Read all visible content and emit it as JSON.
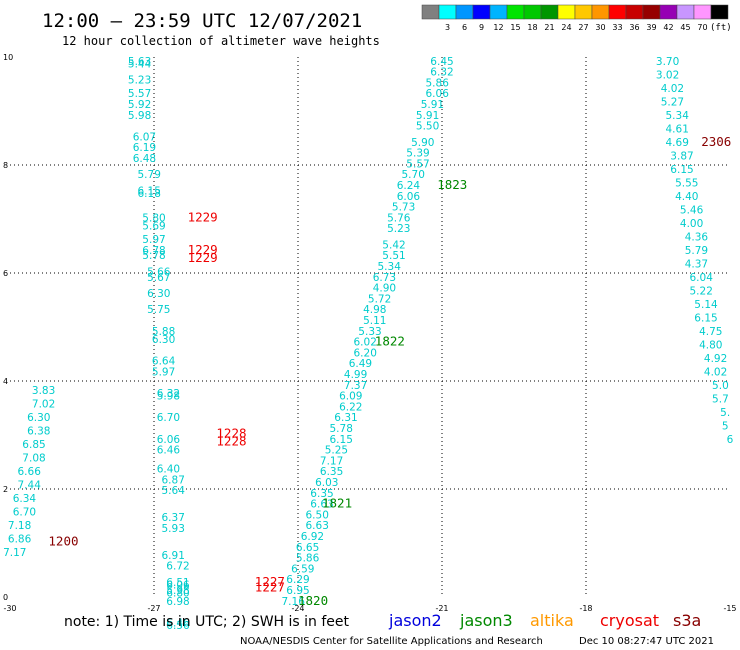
{
  "header": {
    "title": "12:00 – 23:59 UTC 12/07/2021",
    "subtitle": "12 hour collection of altimeter wave heights"
  },
  "legend": {
    "unit": "(ft)",
    "swatches": [
      {
        "color": "#808080",
        "label": ""
      },
      {
        "color": "#00ffff",
        "label": "3"
      },
      {
        "color": "#0096ff",
        "label": "6"
      },
      {
        "color": "#0000ff",
        "label": "9"
      },
      {
        "color": "#00b4ff",
        "label": "12"
      },
      {
        "color": "#00e400",
        "label": "15"
      },
      {
        "color": "#00c800",
        "label": "18"
      },
      {
        "color": "#009600",
        "label": "21"
      },
      {
        "color": "#ffff00",
        "label": "24"
      },
      {
        "color": "#ffc800",
        "label": "27"
      },
      {
        "color": "#ff9600",
        "label": "30"
      },
      {
        "color": "#ff0000",
        "label": "33"
      },
      {
        "color": "#c80000",
        "label": "36"
      },
      {
        "color": "#960000",
        "label": "39"
      },
      {
        "color": "#9600b4",
        "label": "42"
      },
      {
        "color": "#c896ff",
        "label": "45"
      },
      {
        "color": "#ff96ff",
        "label": "70"
      },
      {
        "color": "#000000",
        "label": ""
      }
    ]
  },
  "footer": {
    "note": "note: 1) Time is in UTC; 2) SWH is in feet",
    "credit": "NOAA/NESDIS Center for Satellite Applications and Research",
    "timestamp": "Dec 10 08:27:47 UTC 2021",
    "satellites": [
      {
        "name": "jason2",
        "color": "#0000dd"
      },
      {
        "name": "jason3",
        "color": "#008800"
      },
      {
        "name": "altika",
        "color": "#ff9900"
      },
      {
        "name": "cryosat",
        "color": "#ee0000"
      },
      {
        "name": "s3a",
        "color": "#880000"
      }
    ]
  },
  "chart_data": {
    "type": "scatter",
    "xlim": [
      -30,
      -15
    ],
    "ylim": [
      0,
      10
    ],
    "xticks": [
      -30,
      -27,
      -24,
      -21,
      -18,
      -15
    ],
    "xtick_labels": [
      "-30",
      "-27",
      "-24",
      "-21",
      "-18",
      "-15"
    ],
    "yticks": [
      0,
      2,
      4,
      6,
      8,
      10
    ],
    "ytick_labels": [
      "0",
      "2",
      "4",
      "6",
      "8",
      "10"
    ],
    "grid": true,
    "value_color": "#00cccc",
    "points": [
      {
        "x": -29.3,
        "y": 3.83,
        "v": "3.83"
      },
      {
        "x": -29.3,
        "y": 3.58,
        "v": "7.02"
      },
      {
        "x": -29.4,
        "y": 3.33,
        "v": "6.30"
      },
      {
        "x": -29.4,
        "y": 3.08,
        "v": "6.38"
      },
      {
        "x": -29.5,
        "y": 2.83,
        "v": "6.85"
      },
      {
        "x": -29.5,
        "y": 2.58,
        "v": "7.08"
      },
      {
        "x": -29.6,
        "y": 2.33,
        "v": "6.66"
      },
      {
        "x": -29.6,
        "y": 2.08,
        "v": "7.44"
      },
      {
        "x": -29.7,
        "y": 1.83,
        "v": "6.34"
      },
      {
        "x": -29.7,
        "y": 1.58,
        "v": "6.70"
      },
      {
        "x": -29.8,
        "y": 1.33,
        "v": "7.18"
      },
      {
        "x": -29.8,
        "y": 1.08,
        "v": "6.86"
      },
      {
        "x": -29.9,
        "y": 0.83,
        "v": "7.17"
      },
      {
        "x": -27.3,
        "y": 9.93,
        "v": "5.63"
      },
      {
        "x": -27.3,
        "y": 9.88,
        "v": "5.44"
      },
      {
        "x": -27.3,
        "y": 9.58,
        "v": "5.23"
      },
      {
        "x": -27.3,
        "y": 9.33,
        "v": "5.57"
      },
      {
        "x": -27.3,
        "y": 9.13,
        "v": "5.92"
      },
      {
        "x": -27.3,
        "y": 8.93,
        "v": "5.98"
      },
      {
        "x": -27.2,
        "y": 8.53,
        "v": "6.07"
      },
      {
        "x": -27.2,
        "y": 8.33,
        "v": "6.19"
      },
      {
        "x": -27.2,
        "y": 8.13,
        "v": "6.48"
      },
      {
        "x": -27.1,
        "y": 7.83,
        "v": "5.79"
      },
      {
        "x": -27.1,
        "y": 7.53,
        "v": "6.15"
      },
      {
        "x": -27.1,
        "y": 7.48,
        "v": "6.18"
      },
      {
        "x": -27.0,
        "y": 7.03,
        "v": "5.80"
      },
      {
        "x": -27.0,
        "y": 6.88,
        "v": "5.69"
      },
      {
        "x": -27.0,
        "y": 6.63,
        "v": "5.97"
      },
      {
        "x": -27.0,
        "y": 6.43,
        "v": "6.78"
      },
      {
        "x": -27.0,
        "y": 6.33,
        "v": "5.78"
      },
      {
        "x": -26.9,
        "y": 6.03,
        "v": "5.66"
      },
      {
        "x": -26.9,
        "y": 5.93,
        "v": "5.67"
      },
      {
        "x": -26.9,
        "y": 5.63,
        "v": "6.30"
      },
      {
        "x": -26.9,
        "y": 5.33,
        "v": "5.75"
      },
      {
        "x": -26.8,
        "y": 4.93,
        "v": "5.88"
      },
      {
        "x": -26.8,
        "y": 4.78,
        "v": "6.30"
      },
      {
        "x": -26.8,
        "y": 4.38,
        "v": "6.64"
      },
      {
        "x": -26.8,
        "y": 4.18,
        "v": "5.97"
      },
      {
        "x": -26.7,
        "y": 3.78,
        "v": "6.32"
      },
      {
        "x": -26.7,
        "y": 3.73,
        "v": "5.98"
      },
      {
        "x": -26.7,
        "y": 3.33,
        "v": "6.70"
      },
      {
        "x": -26.7,
        "y": 2.93,
        "v": "6.06"
      },
      {
        "x": -26.7,
        "y": 2.73,
        "v": "6.46"
      },
      {
        "x": -26.7,
        "y": 2.38,
        "v": "6.40"
      },
      {
        "x": -26.6,
        "y": 2.18,
        "v": "6.87"
      },
      {
        "x": -26.6,
        "y": 1.98,
        "v": "5.64"
      },
      {
        "x": -26.6,
        "y": 1.48,
        "v": "6.37"
      },
      {
        "x": -26.6,
        "y": 1.28,
        "v": "5.93"
      },
      {
        "x": -26.6,
        "y": 0.78,
        "v": "6.91"
      },
      {
        "x": -26.5,
        "y": 0.58,
        "v": "6.72"
      },
      {
        "x": -26.5,
        "y": 0.28,
        "v": "6.51"
      },
      {
        "x": -26.5,
        "y": 0.08,
        "v": "6.80"
      },
      {
        "x": -26.5,
        "y": -0.47,
        "v": "6.46"
      },
      {
        "x": -26.5,
        "y": -0.52,
        "v": "6.56"
      },
      {
        "x": -26.5,
        "y": -0.07,
        "v": "6.98"
      },
      {
        "x": -26.5,
        "y": 0.23,
        "v": "6.06"
      },
      {
        "x": -26.5,
        "y": 0.13,
        "v": "5.98"
      },
      {
        "x": -21.0,
        "y": 9.93,
        "v": "6.45"
      },
      {
        "x": -21.0,
        "y": 9.73,
        "v": "6.32"
      },
      {
        "x": -21.1,
        "y": 9.53,
        "v": "5.86"
      },
      {
        "x": -21.1,
        "y": 9.33,
        "v": "6.06"
      },
      {
        "x": -21.2,
        "y": 9.13,
        "v": "5.91"
      },
      {
        "x": -21.3,
        "y": 8.93,
        "v": "5.91"
      },
      {
        "x": -21.3,
        "y": 8.73,
        "v": "5.50"
      },
      {
        "x": -21.4,
        "y": 8.43,
        "v": "5.90"
      },
      {
        "x": -21.5,
        "y": 8.23,
        "v": "5.39"
      },
      {
        "x": -21.5,
        "y": 8.03,
        "v": "5.57"
      },
      {
        "x": -21.6,
        "y": 7.83,
        "v": "5.70"
      },
      {
        "x": -21.7,
        "y": 7.63,
        "v": "6.24"
      },
      {
        "x": -21.7,
        "y": 7.43,
        "v": "6.06"
      },
      {
        "x": -21.8,
        "y": 7.23,
        "v": "5.73"
      },
      {
        "x": -21.9,
        "y": 7.03,
        "v": "5.76"
      },
      {
        "x": -21.9,
        "y": 6.83,
        "v": "5.23"
      },
      {
        "x": -22.0,
        "y": 6.53,
        "v": "5.42"
      },
      {
        "x": -22.0,
        "y": 6.33,
        "v": "5.51"
      },
      {
        "x": -22.1,
        "y": 6.13,
        "v": "5.34"
      },
      {
        "x": -22.2,
        "y": 5.93,
        "v": "6.73"
      },
      {
        "x": -22.2,
        "y": 5.73,
        "v": "4.90"
      },
      {
        "x": -22.3,
        "y": 5.53,
        "v": "5.72"
      },
      {
        "x": -22.4,
        "y": 5.33,
        "v": "4.98"
      },
      {
        "x": -22.4,
        "y": 5.13,
        "v": "5.11"
      },
      {
        "x": -22.5,
        "y": 4.93,
        "v": "5.33"
      },
      {
        "x": -22.6,
        "y": 4.73,
        "v": "6.02"
      },
      {
        "x": -22.6,
        "y": 4.53,
        "v": "6.20"
      },
      {
        "x": -22.7,
        "y": 4.33,
        "v": "6.49"
      },
      {
        "x": -22.8,
        "y": 4.13,
        "v": "4.99"
      },
      {
        "x": -22.8,
        "y": 3.93,
        "v": "7.37"
      },
      {
        "x": -22.9,
        "y": 3.73,
        "v": "6.09"
      },
      {
        "x": -22.9,
        "y": 3.53,
        "v": "6.22"
      },
      {
        "x": -23.0,
        "y": 3.33,
        "v": "6.31"
      },
      {
        "x": -23.1,
        "y": 3.13,
        "v": "5.78"
      },
      {
        "x": -23.1,
        "y": 2.93,
        "v": "6.15"
      },
      {
        "x": -23.2,
        "y": 2.73,
        "v": "5.25"
      },
      {
        "x": -23.3,
        "y": 2.53,
        "v": "7.17"
      },
      {
        "x": -23.3,
        "y": 2.33,
        "v": "6.35"
      },
      {
        "x": -23.4,
        "y": 2.13,
        "v": "6.03"
      },
      {
        "x": -23.5,
        "y": 1.93,
        "v": "6.35"
      },
      {
        "x": -23.5,
        "y": 1.73,
        "v": "6.63"
      },
      {
        "x": -23.6,
        "y": 1.53,
        "v": "6.50"
      },
      {
        "x": -23.6,
        "y": 1.33,
        "v": "6.63"
      },
      {
        "x": -23.7,
        "y": 1.13,
        "v": "6.92"
      },
      {
        "x": -23.8,
        "y": 0.93,
        "v": "6.65"
      },
      {
        "x": -23.8,
        "y": 0.73,
        "v": "5.86"
      },
      {
        "x": -23.9,
        "y": 0.53,
        "v": "6.59"
      },
      {
        "x": -24.0,
        "y": 0.33,
        "v": "6.29"
      },
      {
        "x": -24.0,
        "y": 0.13,
        "v": "6.95"
      },
      {
        "x": -24.1,
        "y": -0.07,
        "v": "7.16"
      },
      {
        "x": -16.3,
        "y": 9.93,
        "v": "3.70"
      },
      {
        "x": -16.3,
        "y": 9.68,
        "v": "3.02"
      },
      {
        "x": -16.2,
        "y": 9.43,
        "v": "4.02"
      },
      {
        "x": -16.2,
        "y": 9.18,
        "v": "5.27"
      },
      {
        "x": -16.1,
        "y": 8.93,
        "v": "5.34"
      },
      {
        "x": -16.1,
        "y": 8.68,
        "v": "4.61"
      },
      {
        "x": -16.1,
        "y": 8.43,
        "v": "4.69"
      },
      {
        "x": -16.0,
        "y": 8.18,
        "v": "3.87"
      },
      {
        "x": -16.0,
        "y": 7.93,
        "v": "6.15"
      },
      {
        "x": -15.9,
        "y": 7.68,
        "v": "5.55"
      },
      {
        "x": -15.9,
        "y": 7.43,
        "v": "4.40"
      },
      {
        "x": -15.8,
        "y": 7.18,
        "v": "5.46"
      },
      {
        "x": -15.8,
        "y": 6.93,
        "v": "4.00"
      },
      {
        "x": -15.7,
        "y": 6.68,
        "v": "4.36"
      },
      {
        "x": -15.7,
        "y": 6.43,
        "v": "5.79"
      },
      {
        "x": -15.7,
        "y": 6.18,
        "v": "4.37"
      },
      {
        "x": -15.6,
        "y": 5.93,
        "v": "6.04"
      },
      {
        "x": -15.6,
        "y": 5.68,
        "v": "5.22"
      },
      {
        "x": -15.5,
        "y": 5.43,
        "v": "5.14"
      },
      {
        "x": -15.5,
        "y": 5.18,
        "v": "6.15"
      },
      {
        "x": -15.4,
        "y": 4.93,
        "v": "4.75"
      },
      {
        "x": -15.4,
        "y": 4.68,
        "v": "4.80"
      },
      {
        "x": -15.3,
        "y": 4.43,
        "v": "4.92"
      },
      {
        "x": -15.3,
        "y": 4.18,
        "v": "4.02"
      },
      {
        "x": -15.2,
        "y": 3.93,
        "v": "5.0"
      },
      {
        "x": -15.2,
        "y": 3.68,
        "v": "5.7"
      },
      {
        "x": -15.1,
        "y": 3.43,
        "v": "5."
      },
      {
        "x": -15.1,
        "y": 3.18,
        "v": "5"
      },
      {
        "x": -15.0,
        "y": 2.93,
        "v": "6"
      }
    ],
    "time_labels": [
      {
        "x": -29.2,
        "y": 1.03,
        "label": "1200",
        "color": "#880000"
      },
      {
        "x": -26.3,
        "y": 7.03,
        "label": "1229",
        "color": "#ee0000"
      },
      {
        "x": -26.3,
        "y": 6.43,
        "label": "1229",
        "color": "#ee0000"
      },
      {
        "x": -26.3,
        "y": 6.28,
        "label": "1229",
        "color": "#ee0000"
      },
      {
        "x": -25.7,
        "y": 3.03,
        "label": "1228",
        "color": "#ee0000"
      },
      {
        "x": -25.7,
        "y": 2.88,
        "label": "1228",
        "color": "#ee0000"
      },
      {
        "x": -24.9,
        "y": 0.28,
        "label": "1227",
        "color": "#ee0000"
      },
      {
        "x": -24.9,
        "y": 0.18,
        "label": "1227",
        "color": "#ee0000"
      },
      {
        "x": -24.0,
        "y": -0.07,
        "label": "1820",
        "color": "#008800"
      },
      {
        "x": -23.5,
        "y": 1.73,
        "label": "1821",
        "color": "#008800"
      },
      {
        "x": -22.4,
        "y": 4.73,
        "label": "1822",
        "color": "#008800"
      },
      {
        "x": -21.1,
        "y": 7.63,
        "label": "1823",
        "color": "#008800"
      },
      {
        "x": -15.6,
        "y": 8.43,
        "label": "2306",
        "color": "#880000"
      }
    ]
  }
}
